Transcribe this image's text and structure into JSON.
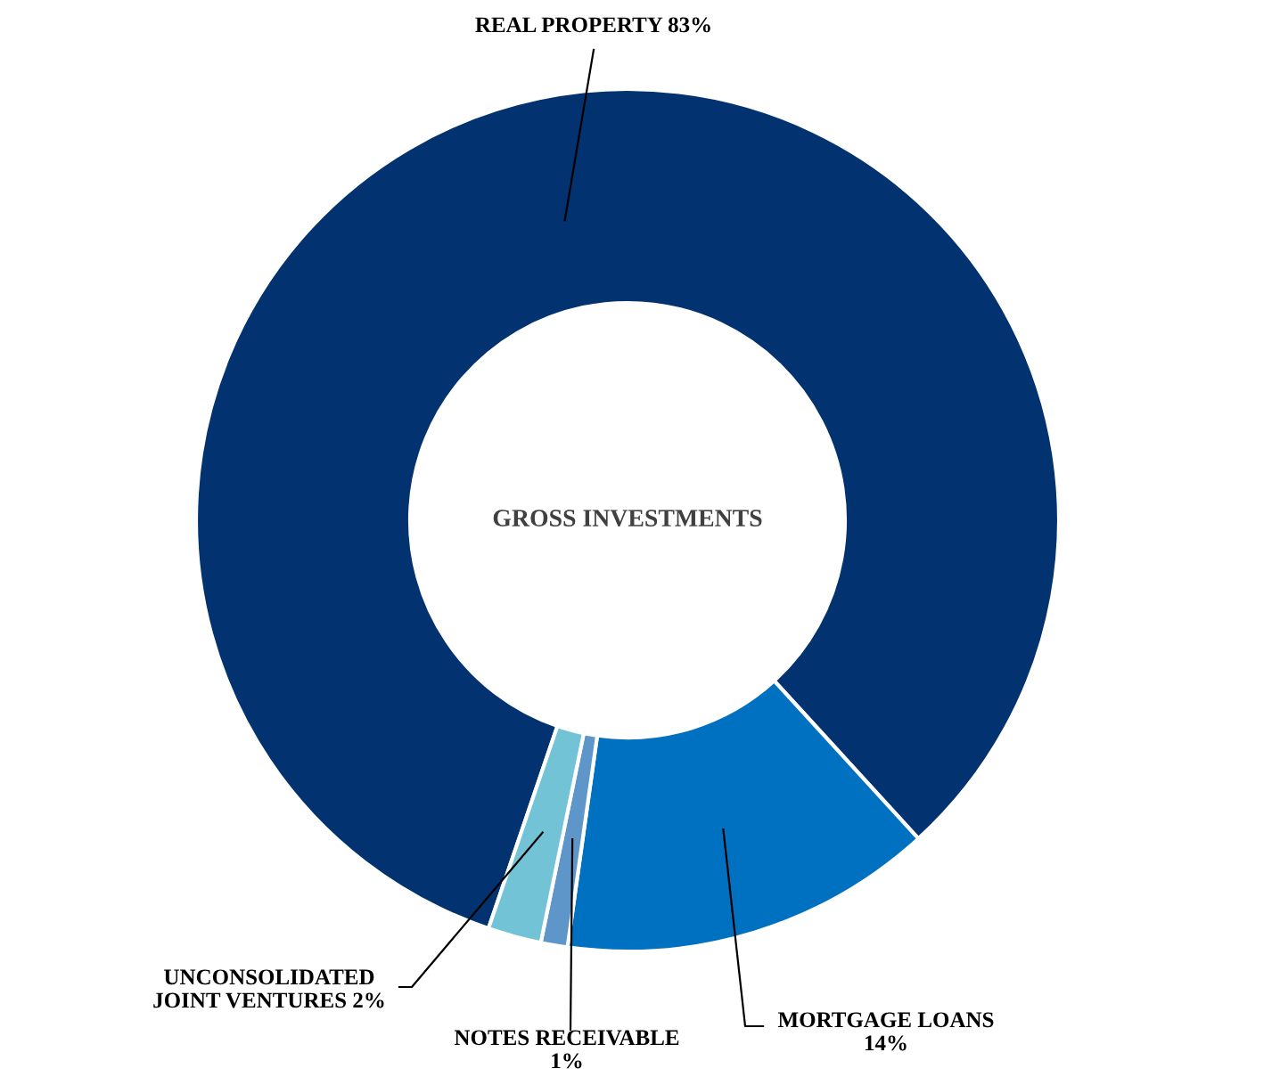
{
  "chart_data": {
    "type": "donut",
    "title": "GROSS INVESTMENTS",
    "categories": [
      "REAL PROPERTY",
      "MORTGAGE LOANS",
      "NOTES RECEIVABLE",
      "UNCONSOLIDATED JOINT VENTURES"
    ],
    "values": [
      83,
      14,
      1,
      2
    ],
    "value_labels": [
      "83%",
      "14%",
      "1%",
      "2%"
    ],
    "colors": [
      "#02326f",
      "#0070c0",
      "#5e96c9",
      "#72c3d5"
    ]
  }
}
